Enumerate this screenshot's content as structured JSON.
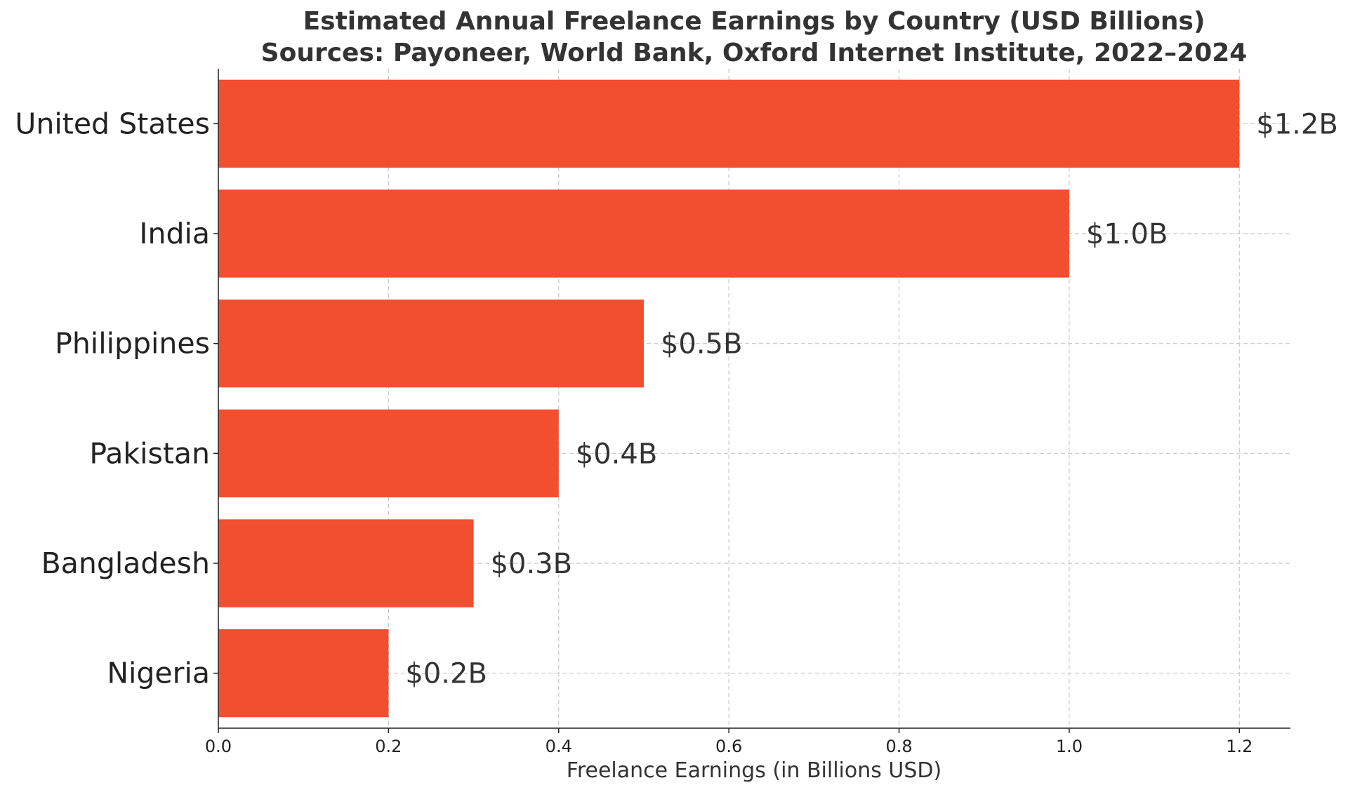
{
  "chart_data": {
    "type": "bar",
    "orientation": "horizontal",
    "title": "Estimated Annual Freelance Earnings by Country (USD Billions)",
    "subtitle": "Sources: Payoneer, World Bank, Oxford Internet Institute, 2022–2024",
    "categories": [
      "United States",
      "India",
      "Philippines",
      "Pakistan",
      "Bangladesh",
      "Nigeria"
    ],
    "values": [
      1.2,
      1.0,
      0.5,
      0.4,
      0.3,
      0.2
    ],
    "value_labels": [
      "$1.2B",
      "$1.0B",
      "$0.5B",
      "$0.4B",
      "$0.3B",
      "$0.2B"
    ],
    "xlabel": "Freelance Earnings (in Billions USD)",
    "ylabel": "",
    "xlim": [
      0,
      1.26
    ],
    "xticks": [
      0.0,
      0.2,
      0.4,
      0.6,
      0.8,
      1.0,
      1.2
    ],
    "xtick_labels": [
      "0.0",
      "0.2",
      "0.4",
      "0.6",
      "0.8",
      "1.0",
      "1.2"
    ],
    "grid": true,
    "bar_color": "#f24e30"
  }
}
